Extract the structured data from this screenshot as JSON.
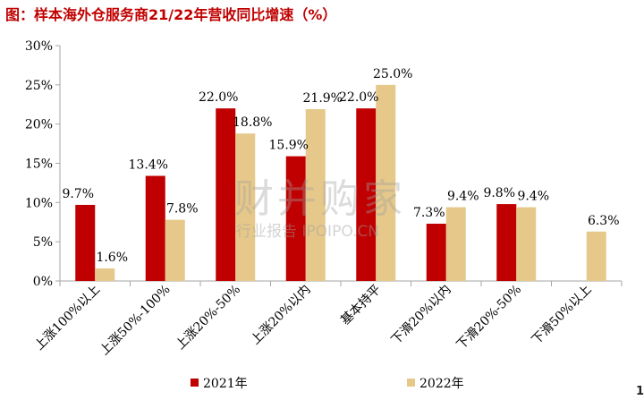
{
  "title": "图：样本海外仓服务商21/22年营收同比增速（%）",
  "watermark": {
    "main": "财并购家",
    "sub": "行业报告 IPOIPO.CN"
  },
  "page_number": "1",
  "colors": {
    "series_2021": "#c00000",
    "series_2022": "#e6c88a",
    "title": "#c00000",
    "axis": "#a6a6a6"
  },
  "chart_data": {
    "type": "bar",
    "title": "图：样本海外仓服务商21/22年营收同比增速（%）",
    "xlabel": "",
    "ylabel": "",
    "ylim": [
      0,
      30
    ],
    "yticks": [
      "0%",
      "5%",
      "10%",
      "15%",
      "20%",
      "25%",
      "30%"
    ],
    "ytick_values": [
      0,
      5,
      10,
      15,
      20,
      25,
      30
    ],
    "grid": false,
    "legend": "bottom",
    "categories": [
      "上涨100%以上",
      "上涨50%-100%",
      "上涨20%-50%",
      "上涨20%以内",
      "基本持平",
      "下滑20%以内",
      "下滑20%-50%",
      "下滑50%以上"
    ],
    "series": [
      {
        "name": "2021年",
        "values": [
          9.7,
          13.4,
          22.0,
          15.9,
          22.0,
          7.3,
          9.8,
          null
        ],
        "labels": [
          "9.7%",
          "13.4%",
          "22.0%",
          "15.9%",
          "22.0%",
          "7.3%",
          "9.8%",
          ""
        ]
      },
      {
        "name": "2022年",
        "values": [
          1.6,
          7.8,
          18.8,
          21.9,
          25.0,
          9.4,
          9.4,
          6.3
        ],
        "labels": [
          "1.6%",
          "7.8%",
          "18.8%",
          "21.9%",
          "25.0%",
          "9.4%",
          "9.4%",
          "6.3%"
        ]
      }
    ]
  }
}
